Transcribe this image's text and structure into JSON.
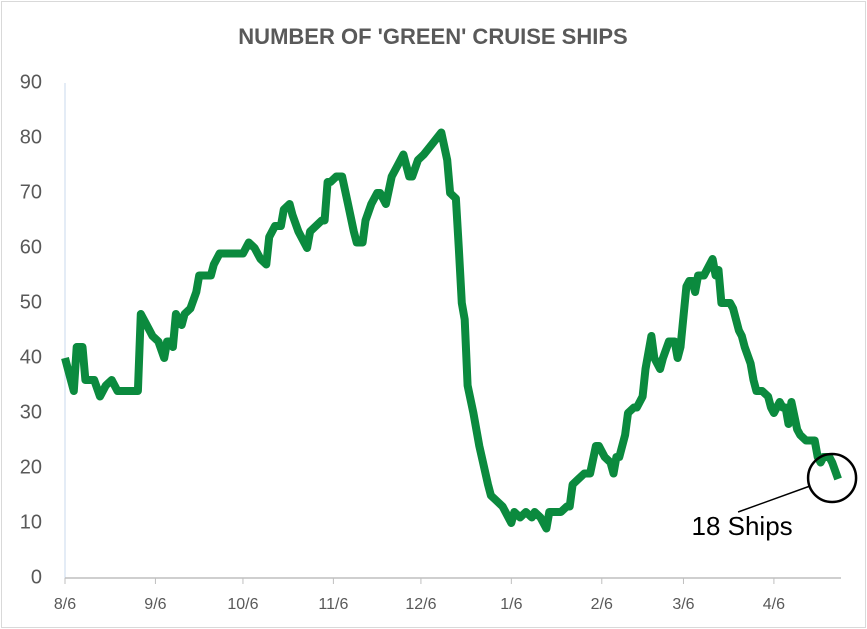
{
  "chart_data": {
    "type": "line",
    "title": "NUMBER OF 'GREEN' CRUISE SHIPS",
    "annotation": "18 Ships",
    "xlim": [
      0,
      266
    ],
    "xticks": [
      {
        "value": 0,
        "label": "8/6"
      },
      {
        "value": 31,
        "label": "9/6"
      },
      {
        "value": 61,
        "label": "10/6"
      },
      {
        "value": 92,
        "label": "11/6"
      },
      {
        "value": 122,
        "label": "12/6"
      },
      {
        "value": 153,
        "label": "1/6"
      },
      {
        "value": 184,
        "label": "2/6"
      },
      {
        "value": 212,
        "label": "3/6"
      },
      {
        "value": 243,
        "label": "4/6"
      }
    ],
    "ylim": [
      0,
      90
    ],
    "yticks": [
      0,
      10,
      20,
      30,
      40,
      50,
      60,
      70,
      80,
      90
    ],
    "grid": false,
    "series": [
      {
        "name": "Number of green cruise ships",
        "color": "#0b8a3e",
        "x": [
          0,
          1,
          3,
          4,
          6,
          7,
          10,
          12,
          14,
          16,
          18,
          22,
          25,
          26,
          28,
          30,
          32,
          34,
          35,
          36,
          37,
          38,
          40,
          41,
          43,
          45,
          46,
          48,
          50,
          51,
          53,
          55,
          57,
          59,
          61,
          63,
          65,
          67,
          69,
          70,
          72,
          74,
          75,
          77,
          78,
          80,
          83,
          84,
          86,
          88,
          89,
          90,
          91,
          93,
          95,
          97,
          99,
          100,
          102,
          103,
          105,
          107,
          108,
          110,
          112,
          114,
          116,
          118,
          119,
          121,
          123,
          126,
          129,
          131,
          132,
          134,
          135,
          136,
          137,
          138,
          140,
          142,
          145,
          146,
          148,
          150,
          152,
          153,
          154,
          156,
          158,
          160,
          161,
          163,
          165,
          166,
          168,
          170,
          172,
          173,
          174,
          176,
          178,
          180,
          182,
          183,
          185,
          187,
          188,
          189,
          190,
          192,
          193,
          195,
          196,
          198,
          199,
          201,
          202,
          204,
          205,
          207,
          209,
          210,
          211,
          213,
          214,
          215,
          216,
          217,
          219,
          220,
          222,
          223,
          224,
          225,
          228,
          229,
          231,
          232,
          233,
          235,
          236,
          237,
          239,
          241,
          242,
          243,
          245,
          246,
          247,
          248,
          249,
          251,
          252,
          254,
          255,
          257,
          258,
          259,
          260,
          262,
          263,
          265
        ],
        "values": [
          40,
          38,
          34,
          42,
          42,
          36,
          36,
          33,
          35,
          36,
          34,
          34,
          34,
          48,
          46,
          44,
          43,
          40,
          43,
          43,
          42,
          48,
          46,
          48,
          49,
          52,
          55,
          55,
          55,
          57,
          59,
          59,
          59,
          59,
          59,
          61,
          60,
          58,
          57,
          62,
          64,
          64,
          67,
          68,
          66,
          63,
          60,
          63,
          64,
          65,
          65,
          72,
          72,
          73,
          73,
          68,
          63,
          61,
          61,
          65,
          68,
          70,
          70,
          68,
          73,
          75,
          77,
          73,
          73,
          76,
          77,
          79,
          81,
          76,
          70,
          69,
          60,
          50,
          47,
          35,
          30,
          24,
          17,
          15,
          14,
          13,
          11,
          10,
          12,
          11,
          12,
          11,
          12,
          11,
          9,
          12,
          12,
          12,
          13,
          13,
          17,
          18,
          19,
          19,
          24,
          24,
          22,
          21,
          19,
          22,
          22,
          26,
          30,
          31,
          31,
          33,
          38,
          44,
          40,
          38,
          40,
          43,
          43,
          40,
          42,
          53,
          54,
          54,
          52,
          55,
          55,
          56,
          58,
          55,
          56,
          50,
          50,
          49,
          45,
          44,
          42,
          39,
          36,
          34,
          34,
          33,
          31,
          30,
          32,
          31,
          31,
          28,
          32,
          27,
          26,
          25,
          25,
          25,
          22,
          21,
          22,
          22,
          21,
          18
        ]
      }
    ]
  }
}
